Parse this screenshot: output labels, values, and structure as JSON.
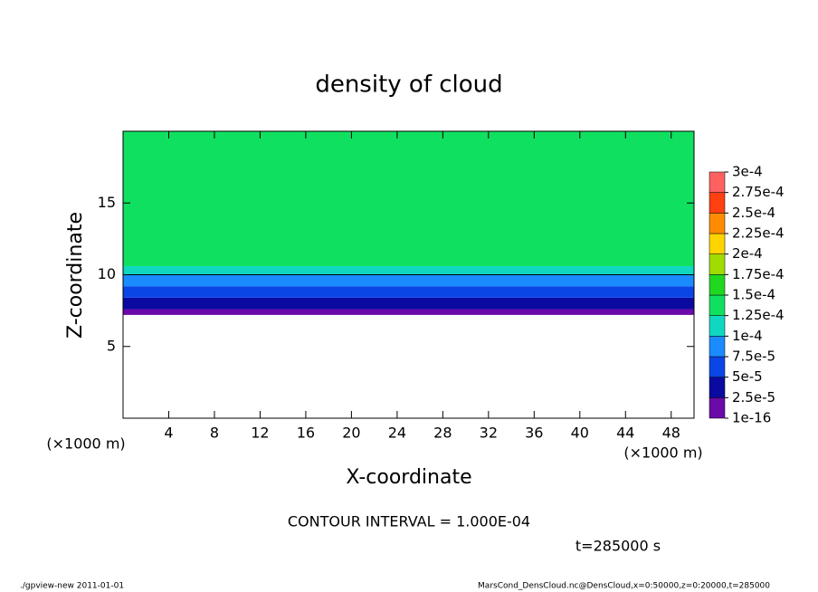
{
  "chart_data": {
    "type": "banded-heatmap",
    "title": "density of cloud",
    "x_label": "X-coordinate",
    "y_label": "Z-coordinate",
    "x_unit": "(×1000 m)",
    "y_unit": "(×1000 m)",
    "xlim": [
      0,
      50
    ],
    "xticks": [
      4,
      8,
      12,
      16,
      20,
      24,
      28,
      32,
      36,
      40,
      44,
      48
    ],
    "ylim": [
      0,
      20
    ],
    "yticks": [
      5,
      10,
      15
    ],
    "z_edges": [
      7.2,
      7.6,
      8.4,
      9.2,
      10,
      10.6,
      20
    ],
    "values": [
      1e-05,
      3.5e-05,
      6e-05,
      8.8e-05,
      0.000112,
      0.000135
    ],
    "contour_levels": [
      0.0001
    ],
    "contour_color": "#000000",
    "colorbar": {
      "ticks": [
        {
          "value": 1e-16,
          "label": "1e-16"
        },
        {
          "value": 2.5e-05,
          "label": "2.5e-5"
        },
        {
          "value": 5e-05,
          "label": "5e-5"
        },
        {
          "value": 7.5e-05,
          "label": "7.5e-5"
        },
        {
          "value": 0.0001,
          "label": "1e-4"
        },
        {
          "value": 0.000125,
          "label": "1.25e-4"
        },
        {
          "value": 0.00015,
          "label": "1.5e-4"
        },
        {
          "value": 0.000175,
          "label": "1.75e-4"
        },
        {
          "value": 0.0002,
          "label": "2e-4"
        },
        {
          "value": 0.000225,
          "label": "2.25e-4"
        },
        {
          "value": 0.00025,
          "label": "2.5e-4"
        },
        {
          "value": 0.000275,
          "label": "2.75e-4"
        },
        {
          "value": 0.0003,
          "label": "3e-4"
        }
      ],
      "colors": [
        "#6a0aa8",
        "#0a0aa0",
        "#0a46e6",
        "#1a8cff",
        "#10d8c0",
        "#10e060",
        "#20d820",
        "#a0dc00",
        "#ffd400",
        "#ff8c00",
        "#ff4010",
        "#ff6060"
      ]
    },
    "contour_note": "CONTOUR INTERVAL = 1.000E-04",
    "time_note": "t=285000 s",
    "footer_left": "./gpview-new  2011-01-01",
    "footer_right": "MarsCond_DensCloud.nc@DensCloud,x=0:50000,z=0:20000,t=285000"
  }
}
